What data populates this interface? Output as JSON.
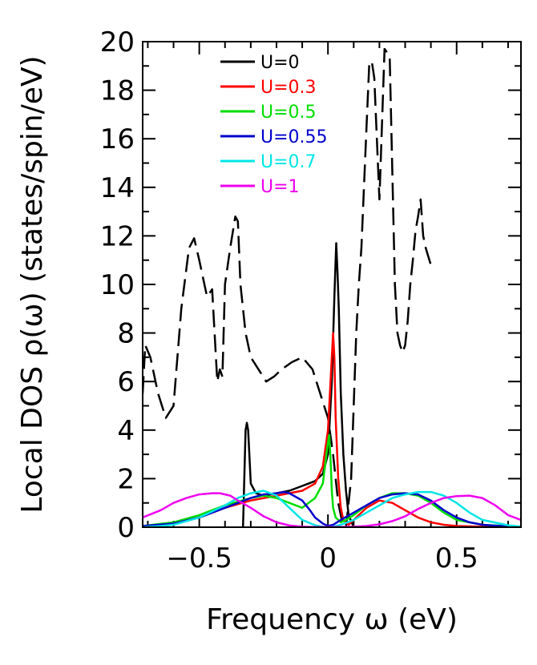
{
  "chart_data": {
    "type": "line",
    "xlabel": "Frequency ω (eV)",
    "ylabel": "Local DOS ρ(ω)  (states/spin/eV)",
    "xlim": [
      -0.72,
      0.75
    ],
    "ylim": [
      0,
      20
    ],
    "xticks": [
      -0.5,
      0,
      0.5
    ],
    "xtick_labels": [
      "−0.5",
      "0",
      "0.5"
    ],
    "yticks": [
      0,
      2,
      4,
      6,
      8,
      10,
      12,
      14,
      16,
      18,
      20
    ],
    "ytick_labels": [
      "0",
      "2",
      "4",
      "6",
      "8",
      "10",
      "12",
      "14",
      "16",
      "18",
      "20"
    ],
    "legend_position": "top-center",
    "series": [
      {
        "name": "U=0",
        "color": "#000000",
        "x": [
          -0.33,
          -0.325,
          -0.32,
          -0.315,
          -0.31,
          -0.3,
          -0.28,
          -0.25,
          -0.2,
          -0.15,
          -0.1,
          -0.05,
          -0.02,
          0.0,
          0.015,
          0.025,
          0.032,
          0.037,
          0.042,
          0.05,
          0.06,
          0.07,
          0.08,
          0.1
        ],
        "y": [
          0,
          2.0,
          4.0,
          4.3,
          4.0,
          1.8,
          1.4,
          1.3,
          1.4,
          1.5,
          1.7,
          1.9,
          2.2,
          3.0,
          6.0,
          9.5,
          11.7,
          10.5,
          9.0,
          5.5,
          3.0,
          1.5,
          0.5,
          0.0
        ]
      },
      {
        "name": "U=0 (dashed)",
        "color": "#000000",
        "dashed": true,
        "x": [
          -0.72,
          -0.71,
          -0.69,
          -0.66,
          -0.63,
          -0.6,
          -0.57,
          -0.54,
          -0.52,
          -0.5,
          -0.47,
          -0.45,
          -0.43,
          -0.42,
          -0.41,
          -0.4,
          -0.38,
          -0.36,
          -0.35,
          -0.34,
          -0.32,
          -0.3,
          -0.27,
          -0.24,
          -0.21,
          -0.18,
          -0.14,
          -0.1,
          -0.06,
          -0.03,
          0.0,
          0.02,
          0.04,
          0.06,
          0.07,
          0.08,
          0.09,
          0.1,
          0.11,
          0.12,
          0.13,
          0.14,
          0.15,
          0.16,
          0.17,
          0.18,
          0.2,
          0.22,
          0.24,
          0.26,
          0.27,
          0.28,
          0.29,
          0.3,
          0.31,
          0.32,
          0.33,
          0.34,
          0.35,
          0.36,
          0.37,
          0.38,
          0.4
        ],
        "y": [
          5.5,
          7.5,
          7.0,
          5.5,
          4.5,
          5.0,
          9.0,
          11.5,
          11.9,
          11.0,
          9.5,
          9.8,
          6.0,
          6.5,
          6.2,
          10.0,
          11.5,
          12.8,
          12.6,
          10.0,
          8.0,
          7.0,
          6.5,
          6.0,
          6.2,
          6.5,
          6.8,
          7.0,
          6.5,
          5.5,
          4.5,
          3.0,
          1.0,
          0.0,
          0.0,
          1.0,
          2.0,
          5.0,
          8.0,
          10.0,
          11.5,
          14.0,
          16.5,
          19.0,
          19.2,
          18.5,
          13.5,
          19.7,
          19.4,
          10.0,
          8.0,
          7.5,
          7.2,
          7.5,
          8.5,
          10.0,
          11.0,
          12.2,
          12.8,
          13.5,
          12.0,
          11.5,
          10.8
        ]
      },
      {
        "name": "U=0.3",
        "color": "#ff0000",
        "x": [
          -0.72,
          -0.6,
          -0.5,
          -0.4,
          -0.3,
          -0.2,
          -0.1,
          -0.05,
          -0.02,
          0.0,
          0.01,
          0.02,
          0.025,
          0.03,
          0.04,
          0.05,
          0.06,
          0.08,
          0.1,
          0.15,
          0.2,
          0.25,
          0.3,
          0.35,
          0.4,
          0.45,
          0.5,
          0.6,
          0.75
        ],
        "y": [
          0.05,
          0.15,
          0.4,
          0.8,
          1.1,
          1.3,
          1.5,
          1.8,
          2.5,
          4.0,
          6.0,
          8.0,
          7.0,
          4.5,
          2.0,
          0.8,
          0.3,
          0.1,
          0.3,
          0.8,
          1.1,
          1.0,
          0.7,
          0.4,
          0.2,
          0.1,
          0.05,
          0.02,
          0.01
        ]
      },
      {
        "name": "U=0.5",
        "color": "#00dd00",
        "x": [
          -0.72,
          -0.6,
          -0.5,
          -0.4,
          -0.3,
          -0.25,
          -0.2,
          -0.15,
          -0.1,
          -0.05,
          -0.02,
          0.0,
          0.005,
          0.01,
          0.015,
          0.02,
          0.03,
          0.05,
          0.07,
          0.1,
          0.15,
          0.2,
          0.25,
          0.3,
          0.35,
          0.4,
          0.45,
          0.5,
          0.6,
          0.75
        ],
        "y": [
          0.05,
          0.2,
          0.5,
          0.9,
          1.2,
          1.3,
          1.2,
          1.0,
          0.8,
          1.2,
          1.8,
          3.5,
          3.8,
          2.8,
          1.5,
          0.8,
          0.4,
          0.2,
          0.3,
          0.5,
          0.9,
          1.2,
          1.4,
          1.4,
          1.3,
          1.0,
          0.6,
          0.3,
          0.1,
          0.02
        ]
      },
      {
        "name": "U=0.55",
        "color": "#0000cc",
        "x": [
          -0.72,
          -0.6,
          -0.5,
          -0.4,
          -0.3,
          -0.25,
          -0.2,
          -0.17,
          -0.15,
          -0.1,
          -0.07,
          -0.05,
          -0.02,
          0.0,
          0.02,
          0.05,
          0.1,
          0.15,
          0.2,
          0.25,
          0.3,
          0.35,
          0.4,
          0.45,
          0.5,
          0.55,
          0.6,
          0.7,
          0.75
        ],
        "y": [
          0.05,
          0.15,
          0.4,
          0.8,
          1.2,
          1.35,
          1.4,
          1.45,
          1.4,
          1.1,
          0.7,
          0.4,
          0.15,
          0.05,
          0.1,
          0.3,
          0.6,
          0.9,
          1.2,
          1.35,
          1.4,
          1.35,
          1.1,
          0.7,
          0.4,
          0.2,
          0.1,
          0.03,
          0.02
        ]
      },
      {
        "name": "U=0.7",
        "color": "#00e5e5",
        "x": [
          -0.72,
          -0.65,
          -0.6,
          -0.5,
          -0.4,
          -0.35,
          -0.3,
          -0.25,
          -0.2,
          -0.15,
          -0.1,
          -0.05,
          -0.02,
          0.0,
          0.02,
          0.05,
          0.1,
          0.15,
          0.2,
          0.25,
          0.3,
          0.35,
          0.4,
          0.45,
          0.5,
          0.55,
          0.6,
          0.7,
          0.75
        ],
        "y": [
          0.0,
          0.05,
          0.1,
          0.4,
          0.9,
          1.2,
          1.4,
          1.5,
          1.3,
          0.8,
          0.3,
          0.08,
          0.02,
          0.01,
          0.02,
          0.1,
          0.3,
          0.6,
          0.9,
          1.2,
          1.35,
          1.45,
          1.45,
          1.3,
          1.0,
          0.6,
          0.3,
          0.08,
          0.03
        ]
      },
      {
        "name": "U=1",
        "color": "#ee00ee",
        "x": [
          -0.72,
          -0.65,
          -0.6,
          -0.55,
          -0.5,
          -0.45,
          -0.42,
          -0.38,
          -0.35,
          -0.3,
          -0.25,
          -0.2,
          -0.15,
          -0.1,
          -0.05,
          0.0,
          0.05,
          0.1,
          0.15,
          0.2,
          0.25,
          0.3,
          0.35,
          0.4,
          0.45,
          0.5,
          0.55,
          0.6,
          0.65,
          0.7,
          0.75
        ],
        "y": [
          0.4,
          0.7,
          1.0,
          1.2,
          1.35,
          1.4,
          1.4,
          1.3,
          1.1,
          0.8,
          0.45,
          0.2,
          0.07,
          0.02,
          0.01,
          0.01,
          0.01,
          0.02,
          0.05,
          0.12,
          0.25,
          0.45,
          0.75,
          1.0,
          1.2,
          1.28,
          1.3,
          1.2,
          0.9,
          0.5,
          0.3
        ]
      }
    ]
  },
  "legend": [
    {
      "label": "U=0",
      "color": "#000000"
    },
    {
      "label": "U=0.3",
      "color": "#ff0000"
    },
    {
      "label": "U=0.5",
      "color": "#00dd00"
    },
    {
      "label": "U=0.55",
      "color": "#0000cc"
    },
    {
      "label": "U=0.7",
      "color": "#00e5e5"
    },
    {
      "label": "U=1",
      "color": "#ee00ee"
    }
  ]
}
